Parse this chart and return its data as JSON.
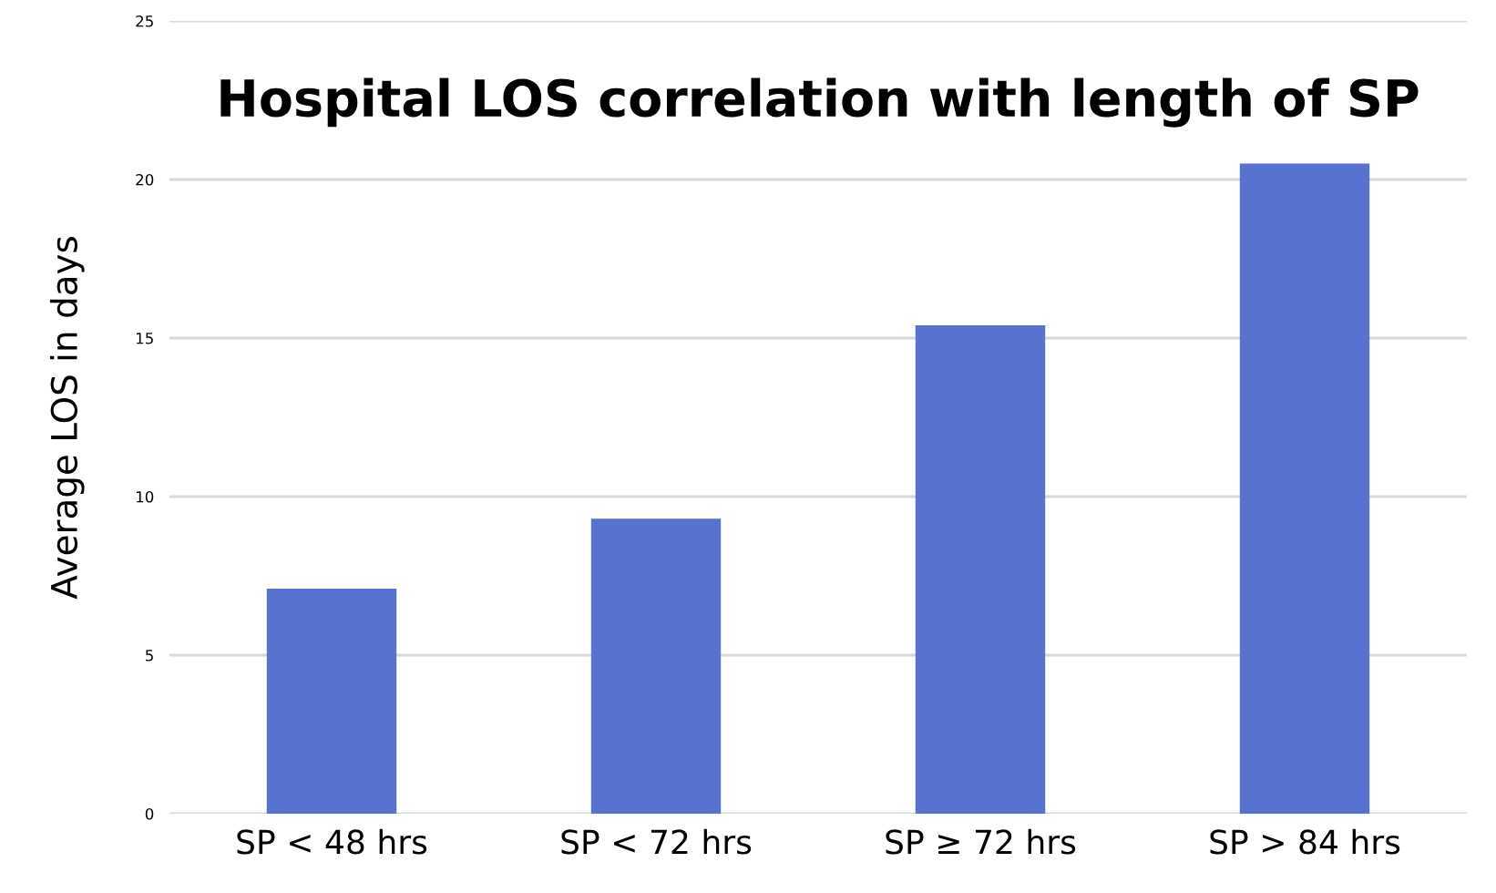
{
  "chart_data": {
    "type": "bar",
    "title": "Hospital LOS correlation with length of SP",
    "ylabel": "Average LOS in days",
    "categories": [
      "SP < 48 hrs",
      "SP < 72 hrs",
      "SP ≥ 72 hrs",
      "SP > 84 hrs"
    ],
    "values": [
      7.1,
      9.3,
      15.4,
      20.5
    ],
    "color": "#5872cf",
    "ylim": [
      0,
      25
    ],
    "yticks": [
      0,
      5,
      10,
      15,
      20,
      25
    ],
    "grid": "y"
  }
}
